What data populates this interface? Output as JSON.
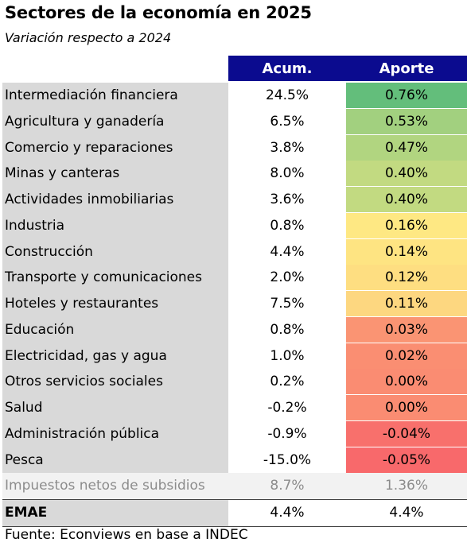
{
  "title": "Sectores de la economía en 2025",
  "subtitle": "Variación respecto a 2024",
  "source": "Fuente: Econviews en base a INDEC",
  "chart_data": {
    "type": "table",
    "columns": [
      "Acum.",
      "Aporte"
    ],
    "rows": [
      {
        "label": "Intermediación financiera",
        "acum": "24.5%",
        "aporte": "0.76%",
        "color": "#63be7b"
      },
      {
        "label": "Agricultura y ganadería",
        "acum": "6.5%",
        "aporte": "0.53%",
        "color": "#a2d07f"
      },
      {
        "label": "Comercio y reparaciones",
        "acum": "3.8%",
        "aporte": "0.47%",
        "color": "#b1d580"
      },
      {
        "label": "Minas y canteras",
        "acum": "8.0%",
        "aporte": "0.40%",
        "color": "#c2da81"
      },
      {
        "label": "Actividades inmobiliarias",
        "acum": "3.6%",
        "aporte": "0.40%",
        "color": "#c2da81"
      },
      {
        "label": "Industria",
        "acum": "0.8%",
        "aporte": "0.16%",
        "color": "#fee883"
      },
      {
        "label": "Construcción",
        "acum": "4.4%",
        "aporte": "0.14%",
        "color": "#fee482"
      },
      {
        "label": "Transporte y comunicaciones",
        "acum": "2.0%",
        "aporte": "0.12%",
        "color": "#fede81"
      },
      {
        "label": "Hoteles y restaurantes",
        "acum": "7.5%",
        "aporte": "0.11%",
        "color": "#fdd780"
      },
      {
        "label": "Educación",
        "acum": "0.8%",
        "aporte": "0.03%",
        "color": "#fa9473"
      },
      {
        "label": "Electricidad, gas y agua",
        "acum": "1.0%",
        "aporte": "0.02%",
        "color": "#fa8e72"
      },
      {
        "label": "Otros servicios sociales",
        "acum": "0.2%",
        "aporte": "0.00%",
        "color": "#fa8c72"
      },
      {
        "label": "Salud",
        "acum": "-0.2%",
        "aporte": "0.00%",
        "color": "#fa8c72"
      },
      {
        "label": "Administración pública",
        "acum": "-0.9%",
        "aporte": "-0.04%",
        "color": "#f8706c"
      },
      {
        "label": "Pesca",
        "acum": "-15.0%",
        "aporte": "-0.05%",
        "color": "#f8696b"
      }
    ],
    "taxes_row": {
      "label": "Impuestos netos de subsidios",
      "acum": "8.7%",
      "aporte": "1.36%"
    },
    "total_row": {
      "label": "EMAE",
      "acum": "4.4%",
      "aporte": "4.4%"
    }
  }
}
